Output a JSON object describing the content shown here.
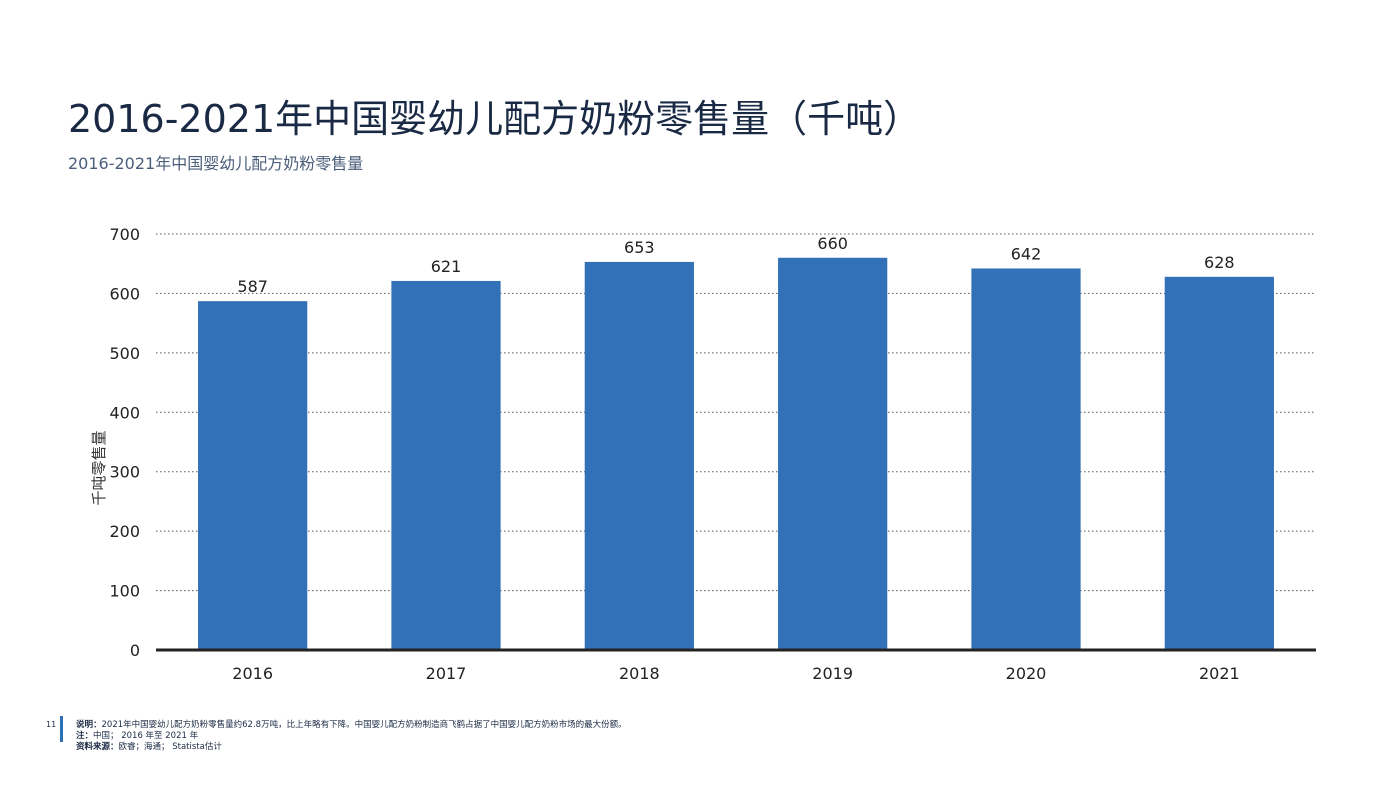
{
  "title": "2016-2021年中国婴幼儿配方奶粉零售量（千吨）",
  "subtitle": "2016-2021年中国婴幼儿配方奶粉零售量",
  "page_number": "11",
  "notes": [
    {
      "key": "说明：",
      "text": "2021年中国婴幼儿配方奶粉零售量约62.8万吨，比上年略有下降。中国婴儿配方奶粉制造商飞鹤占据了中国婴儿配方奶粉市场的最大份额。"
    },
    {
      "key": "注：",
      "text": "中国； 2016 年至 2021 年"
    },
    {
      "key": "资料来源：",
      "text": "欧睿；海通； Statista估计"
    }
  ],
  "colors": {
    "bar": "#3270b8",
    "axis": "#222222",
    "grid": "#555555",
    "title": "#1b2a44",
    "accent": "#2f6fb8"
  },
  "chart_data": {
    "type": "bar",
    "categories": [
      "2016",
      "2017",
      "2018",
      "2019",
      "2020",
      "2021"
    ],
    "values": [
      587,
      621,
      653,
      660,
      642,
      628
    ],
    "data_labels": [
      "587",
      "621",
      "653",
      "660",
      "642",
      "628"
    ],
    "title": "",
    "xlabel": "",
    "ylabel": "千吨零售量",
    "ylim": [
      0,
      700
    ],
    "yticks": [
      0,
      100,
      200,
      300,
      400,
      500,
      600,
      700
    ],
    "grid": true,
    "grid_style": "dotted",
    "legend": "none"
  }
}
